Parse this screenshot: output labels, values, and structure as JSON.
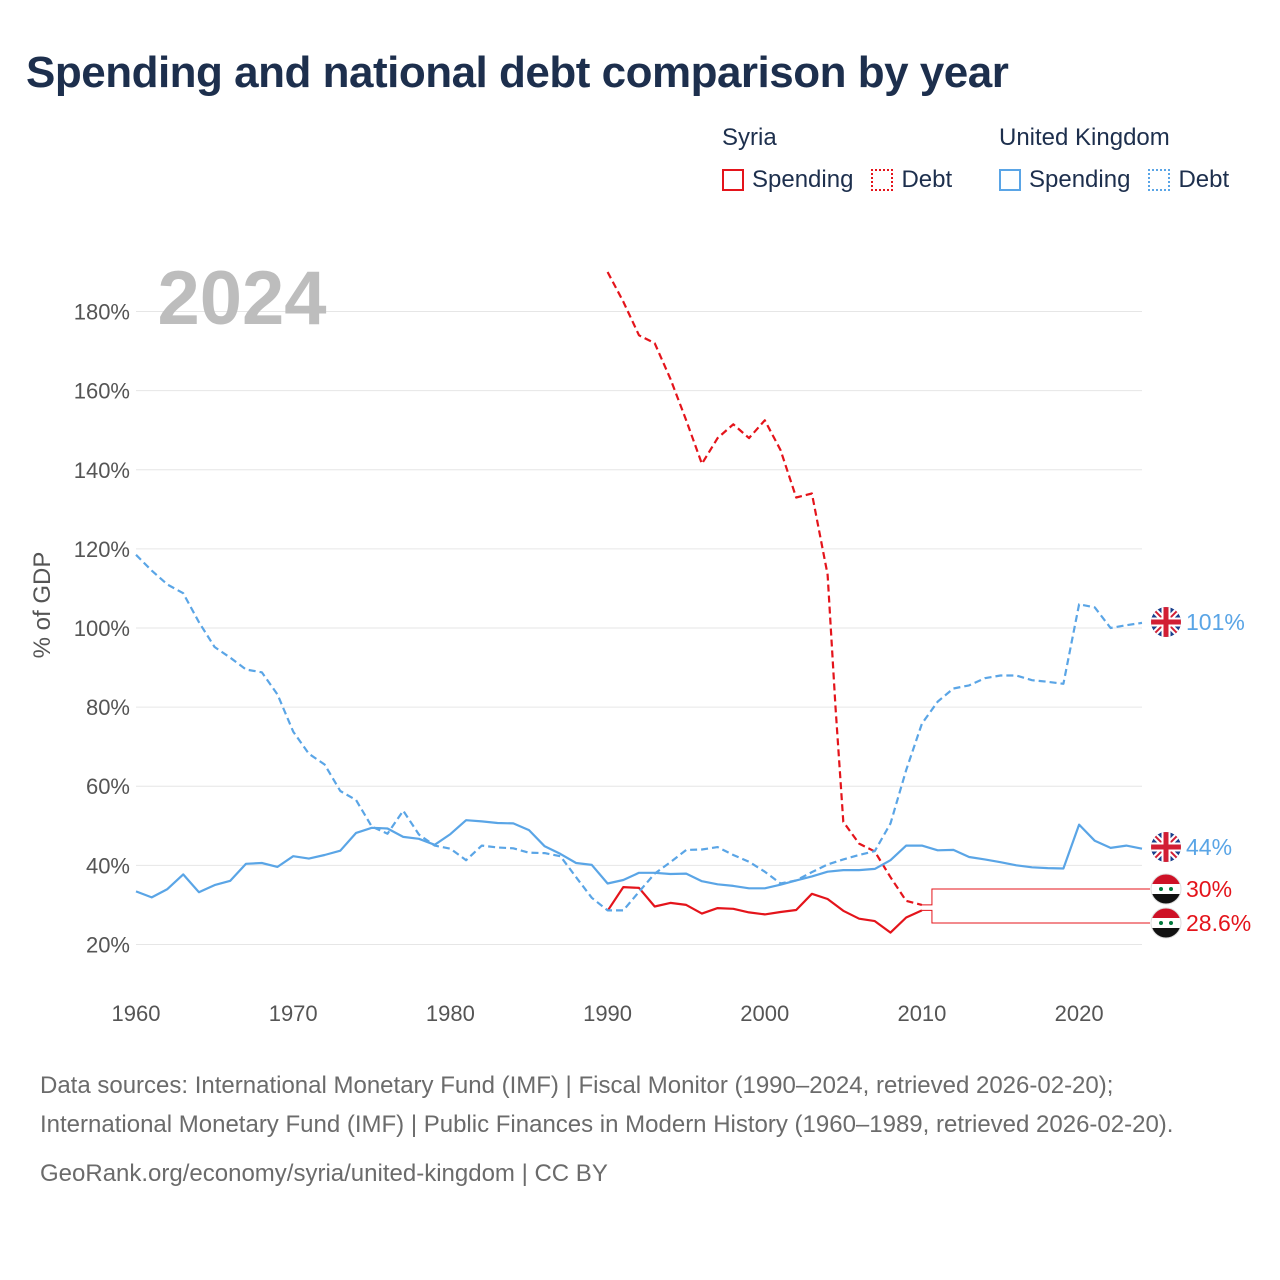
{
  "chart_data": {
    "type": "line",
    "title": "Spending and national debt comparison by year",
    "year_watermark": "2024",
    "ylabel": "% of GDP",
    "xlim": [
      1960,
      2024
    ],
    "ylim": [
      10,
      190
    ],
    "yticks": [
      20,
      40,
      60,
      80,
      100,
      120,
      140,
      160,
      180
    ],
    "ytick_labels": [
      "20%",
      "40%",
      "60%",
      "80%",
      "100%",
      "120%",
      "140%",
      "160%",
      "180%"
    ],
    "xticks": [
      1960,
      1970,
      1980,
      1990,
      2000,
      2010,
      2020
    ],
    "xtick_labels": [
      "1960",
      "1970",
      "1980",
      "1990",
      "2000",
      "2010",
      "2020"
    ],
    "legend": {
      "groups": [
        {
          "country": "Syria",
          "color": "#e4141b",
          "spending_label": "Spending",
          "debt_label": "Debt"
        },
        {
          "country": "United Kingdom",
          "color": "#5aa5e6",
          "spending_label": "Spending",
          "debt_label": "Debt"
        }
      ]
    },
    "series": [
      {
        "name": "Syria Spending",
        "color": "#e4141b",
        "dash": false,
        "x": [
          1990,
          1991,
          1992,
          1993,
          1994,
          1995,
          1996,
          1997,
          1998,
          1999,
          2000,
          2001,
          2002,
          2003,
          2004,
          2005,
          2006,
          2007,
          2008,
          2009,
          2010
        ],
        "values": [
          28.5,
          34.5,
          34.3,
          29.6,
          30.5,
          30,
          27.8,
          29.2,
          29,
          28.1,
          27.6,
          28.2,
          28.7,
          32.8,
          31.5,
          28.5,
          26.5,
          25.9,
          23,
          26.8,
          28.6
        ]
      },
      {
        "name": "Syria Debt",
        "color": "#e4141b",
        "dash": true,
        "x": [
          1990,
          1991,
          1992,
          1993,
          1994,
          1995,
          1996,
          1997,
          1998,
          1999,
          2000,
          2001,
          2002,
          2003,
          2004,
          2004.5,
          2005,
          2006,
          2007,
          2008,
          2009,
          2010
        ],
        "values": [
          190,
          182.5,
          174,
          172,
          163,
          152.5,
          141.5,
          148,
          151.5,
          148,
          152.5,
          145,
          133,
          134,
          113.5,
          80,
          51,
          45.5,
          43.5,
          37,
          31,
          30
        ]
      },
      {
        "name": "United Kingdom Spending",
        "color": "#5aa5e6",
        "dash": false,
        "x": [
          1960,
          1961,
          1962,
          1963,
          1964,
          1965,
          1966,
          1967,
          1968,
          1969,
          1970,
          1971,
          1972,
          1973,
          1974,
          1975,
          1976,
          1977,
          1978,
          1979,
          1980,
          1981,
          1982,
          1983,
          1984,
          1985,
          1986,
          1987,
          1988,
          1989,
          1990,
          1991,
          1992,
          1993,
          1994,
          1995,
          1996,
          1997,
          1998,
          1999,
          2000,
          2001,
          2002,
          2003,
          2004,
          2005,
          2006,
          2007,
          2008,
          2009,
          2010,
          2011,
          2012,
          2013,
          2014,
          2015,
          2016,
          2017,
          2018,
          2019,
          2020,
          2021,
          2022,
          2023,
          2024
        ],
        "values": [
          33.4,
          31.9,
          34,
          37.7,
          33.2,
          35,
          36.1,
          40.4,
          40.6,
          39.6,
          42.3,
          41.7,
          42.6,
          43.7,
          48.2,
          49.5,
          49.3,
          47.2,
          46.7,
          45.2,
          47.9,
          51.4,
          51.1,
          50.7,
          50.6,
          48.9,
          44.8,
          42.9,
          40.6,
          40.1,
          35.4,
          36.3,
          38.1,
          38.1,
          37.8,
          37.9,
          36,
          35.2,
          34.8,
          34.2,
          34.2,
          35.1,
          36.2,
          37.2,
          38.4,
          38.8,
          38.8,
          39.1,
          41.3,
          45,
          45,
          43.8,
          43.9,
          42.1,
          41.5,
          40.8,
          40,
          39.5,
          39.3,
          39.2,
          50.3,
          46.2,
          44.4,
          45,
          44.2
        ]
      },
      {
        "name": "United Kingdom Debt",
        "color": "#5aa5e6",
        "dash": true,
        "x": [
          1960,
          1961,
          1962,
          1963,
          1964,
          1965,
          1966,
          1967,
          1968,
          1969,
          1970,
          1971,
          1972,
          1973,
          1974,
          1975,
          1976,
          1977,
          1978,
          1979,
          1980,
          1981,
          1982,
          1983,
          1984,
          1985,
          1986,
          1987,
          1988,
          1989,
          1990,
          1991,
          1992,
          1993,
          1994,
          1995,
          1996,
          1997,
          1998,
          1999,
          2000,
          2001,
          2002,
          2003,
          2004,
          2005,
          2006,
          2007,
          2008,
          2009,
          2010,
          2011,
          2012,
          2013,
          2014,
          2015,
          2016,
          2017,
          2018,
          2019,
          2020,
          2021,
          2022,
          2023,
          2024
        ],
        "values": [
          118.5,
          114.5,
          111,
          108.8,
          101.5,
          95.2,
          92.5,
          89.5,
          88.8,
          83.2,
          73.8,
          68.2,
          65.5,
          58.8,
          56.5,
          49.8,
          48,
          53.8,
          47.8,
          45,
          44.2,
          41.3,
          45,
          44.5,
          44.3,
          43.2,
          43.1,
          42.3,
          37,
          31.8,
          28.6,
          28.6,
          33.3,
          37.9,
          40.8,
          43.9,
          44,
          44.6,
          42.6,
          40.9,
          38.4,
          35.4,
          36.2,
          38.3,
          40.2,
          41.5,
          42.6,
          43.6,
          50.6,
          64.1,
          75.8,
          81.4,
          84.7,
          85.5,
          87.3,
          88,
          88,
          86.8,
          86.4,
          85.9,
          106,
          105.2,
          100,
          100.7,
          101.3
        ]
      }
    ],
    "end_labels": [
      {
        "country": "United Kingdom",
        "label": "101%",
        "color": "#5aa5e6"
      },
      {
        "country": "United Kingdom",
        "label": "44%",
        "color": "#5aa5e6"
      },
      {
        "country": "Syria",
        "label": "30%",
        "color": "#e4141b"
      },
      {
        "country": "Syria",
        "label": "28.6%",
        "color": "#e4141b"
      }
    ]
  },
  "footer": {
    "sources": "Data sources: International Monetary Fund (IMF) | Fiscal Monitor (1990–2024, retrieved 2026-02-20); International Monetary Fund (IMF) | Public Finances in Modern History (1960–1989, retrieved 2026-02-20).",
    "attribution": "GeoRank.org/economy/syria/united-kingdom | CC BY"
  }
}
